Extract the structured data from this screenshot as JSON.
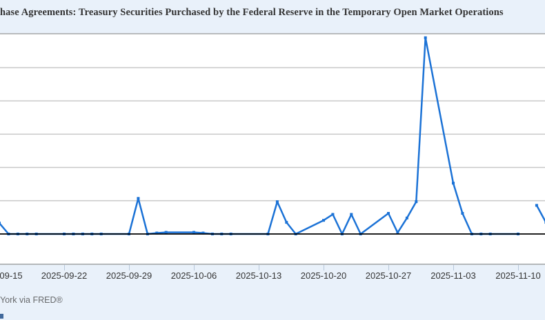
{
  "header": {
    "title_visible": "hase Agreements: Treasury Securities Purchased by the Federal Reserve in the Temporary Open Market Operations"
  },
  "footer": {
    "source_visible": "York via FRED®"
  },
  "colors": {
    "background": "#e9f1fa",
    "plot_background": "#ffffff",
    "series_line": "#1b72d6",
    "zero_line": "#000000",
    "gridline": "#c9c9c9",
    "border": "#b4b7b9",
    "title_text": "#333333",
    "tick_text": "#333333",
    "source_text": "#67696b",
    "tick_mark": "#b7c7da",
    "button_fragment": "#41699c"
  },
  "chart_data": {
    "type": "line",
    "title": "hase Agreements: Treasury Securities Purchased by the Federal Reserve in the Temporary Open Market Operations",
    "xlabel": "",
    "ylabel": "",
    "grid": true,
    "legend": "none",
    "ylim": [
      -9,
      60
    ],
    "gridline_step": 10,
    "zero_line": true,
    "x_tick_labels": [
      "09-15",
      "2025-09-22",
      "2025-09-29",
      "2025-10-06",
      "2025-10-13",
      "2025-10-20",
      "2025-10-27",
      "2025-11-03",
      "2025-11-10"
    ],
    "x_tick_label_x": [
      16,
      93,
      187,
      281,
      375,
      469,
      563,
      657,
      751
    ],
    "x_tick_mark_x": [
      93,
      187,
      281,
      375,
      469,
      563,
      657,
      751
    ],
    "segments": [
      [
        {
          "date": "2025-09-15",
          "value": 3.3
        },
        {
          "date": "2025-09-16",
          "value": 0
        },
        {
          "date": "2025-09-17",
          "value": 0
        },
        {
          "date": "2025-09-18",
          "value": 0
        },
        {
          "date": "2025-09-19",
          "value": 0
        },
        {
          "date": "2025-09-22",
          "value": 0
        },
        {
          "date": "2025-09-23",
          "value": 0
        },
        {
          "date": "2025-09-24",
          "value": 0
        },
        {
          "date": "2025-09-25",
          "value": 0
        },
        {
          "date": "2025-09-26",
          "value": 0
        },
        {
          "date": "2025-09-29",
          "value": 0
        },
        {
          "date": "2025-09-30",
          "value": 10.7
        },
        {
          "date": "2025-10-01",
          "value": 0
        },
        {
          "date": "2025-10-02",
          "value": 0.3
        },
        {
          "date": "2025-10-03",
          "value": 0.5
        },
        {
          "date": "2025-10-06",
          "value": 0.5
        },
        {
          "date": "2025-10-07",
          "value": 0.3
        },
        {
          "date": "2025-10-08",
          "value": 0
        },
        {
          "date": "2025-10-09",
          "value": 0
        },
        {
          "date": "2025-10-10",
          "value": 0
        },
        {
          "date": "2025-10-14",
          "value": 0
        },
        {
          "date": "2025-10-15",
          "value": 9.7
        },
        {
          "date": "2025-10-16",
          "value": 3.5
        },
        {
          "date": "2025-10-17",
          "value": 0
        },
        {
          "date": "2025-10-20",
          "value": 4.1
        },
        {
          "date": "2025-10-21",
          "value": 5.9
        },
        {
          "date": "2025-10-22",
          "value": 0
        },
        {
          "date": "2025-10-23",
          "value": 5.9
        },
        {
          "date": "2025-10-24",
          "value": 0
        },
        {
          "date": "2025-10-27",
          "value": 6.2
        },
        {
          "date": "2025-10-28",
          "value": 0.4
        },
        {
          "date": "2025-10-29",
          "value": 4.8
        },
        {
          "date": "2025-10-30",
          "value": 9.7
        },
        {
          "date": "2025-10-31",
          "value": 59
        },
        {
          "date": "2025-11-03",
          "value": 15.3
        },
        {
          "date": "2025-11-04",
          "value": 6.2
        },
        {
          "date": "2025-11-05",
          "value": 0
        },
        {
          "date": "2025-11-06",
          "value": 0
        },
        {
          "date": "2025-11-07",
          "value": 0
        },
        {
          "date": "2025-11-10",
          "value": 0
        }
      ],
      [
        {
          "date": "2025-11-12",
          "value": 8.6
        },
        {
          "date": "2025-11-13",
          "value": 3.5
        }
      ]
    ]
  }
}
